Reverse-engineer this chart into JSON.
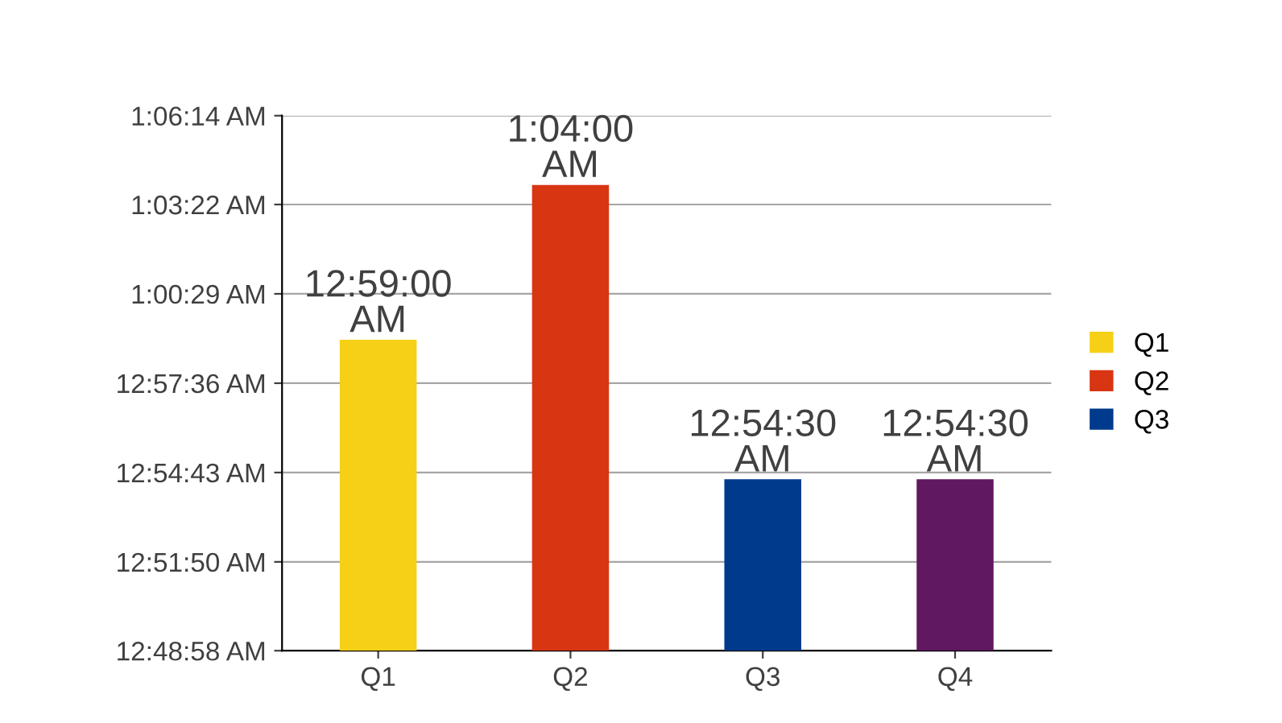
{
  "chart_data": {
    "type": "bar",
    "categories": [
      "Q1",
      "Q2",
      "Q3",
      "Q4"
    ],
    "series": [
      {
        "name": "Q1",
        "color": "#f5d016",
        "values": [
          0.98333,
          null,
          null,
          null
        ],
        "value_labels": [
          "12:59:00 AM",
          null,
          null,
          null
        ]
      },
      {
        "name": "Q2",
        "color": "#d83513",
        "values": [
          null,
          1.06667,
          null,
          null
        ],
        "value_labels": [
          null,
          "1:04:00 AM",
          null,
          null
        ]
      },
      {
        "name": "Q3",
        "color": "#003a8c",
        "values": [
          null,
          null,
          0.90833,
          null
        ],
        "value_labels": [
          null,
          null,
          "12:54:30 AM",
          null
        ]
      },
      {
        "color": "#601860",
        "values": [
          null,
          null,
          null,
          0.90833
        ],
        "value_labels": [
          null,
          null,
          null,
          "12:54:30 AM"
        ]
      }
    ],
    "ylim": [
      0.81611,
      1.10389
    ],
    "yticks": [
      {
        "value": 0.81611,
        "label": "12:48:58 AM"
      },
      {
        "value": 0.86389,
        "label": "12:51:50 AM"
      },
      {
        "value": 0.91194,
        "label": "12:54:43 AM"
      },
      {
        "value": 0.96,
        "label": "12:57:36 AM"
      },
      {
        "value": 1.00806,
        "label": "1:00:29 AM"
      },
      {
        "value": 1.05611,
        "label": "1:03:22 AM"
      },
      {
        "value": 1.10389,
        "label": "1:06:14 AM"
      }
    ],
    "grid": "y",
    "legend": "right"
  }
}
